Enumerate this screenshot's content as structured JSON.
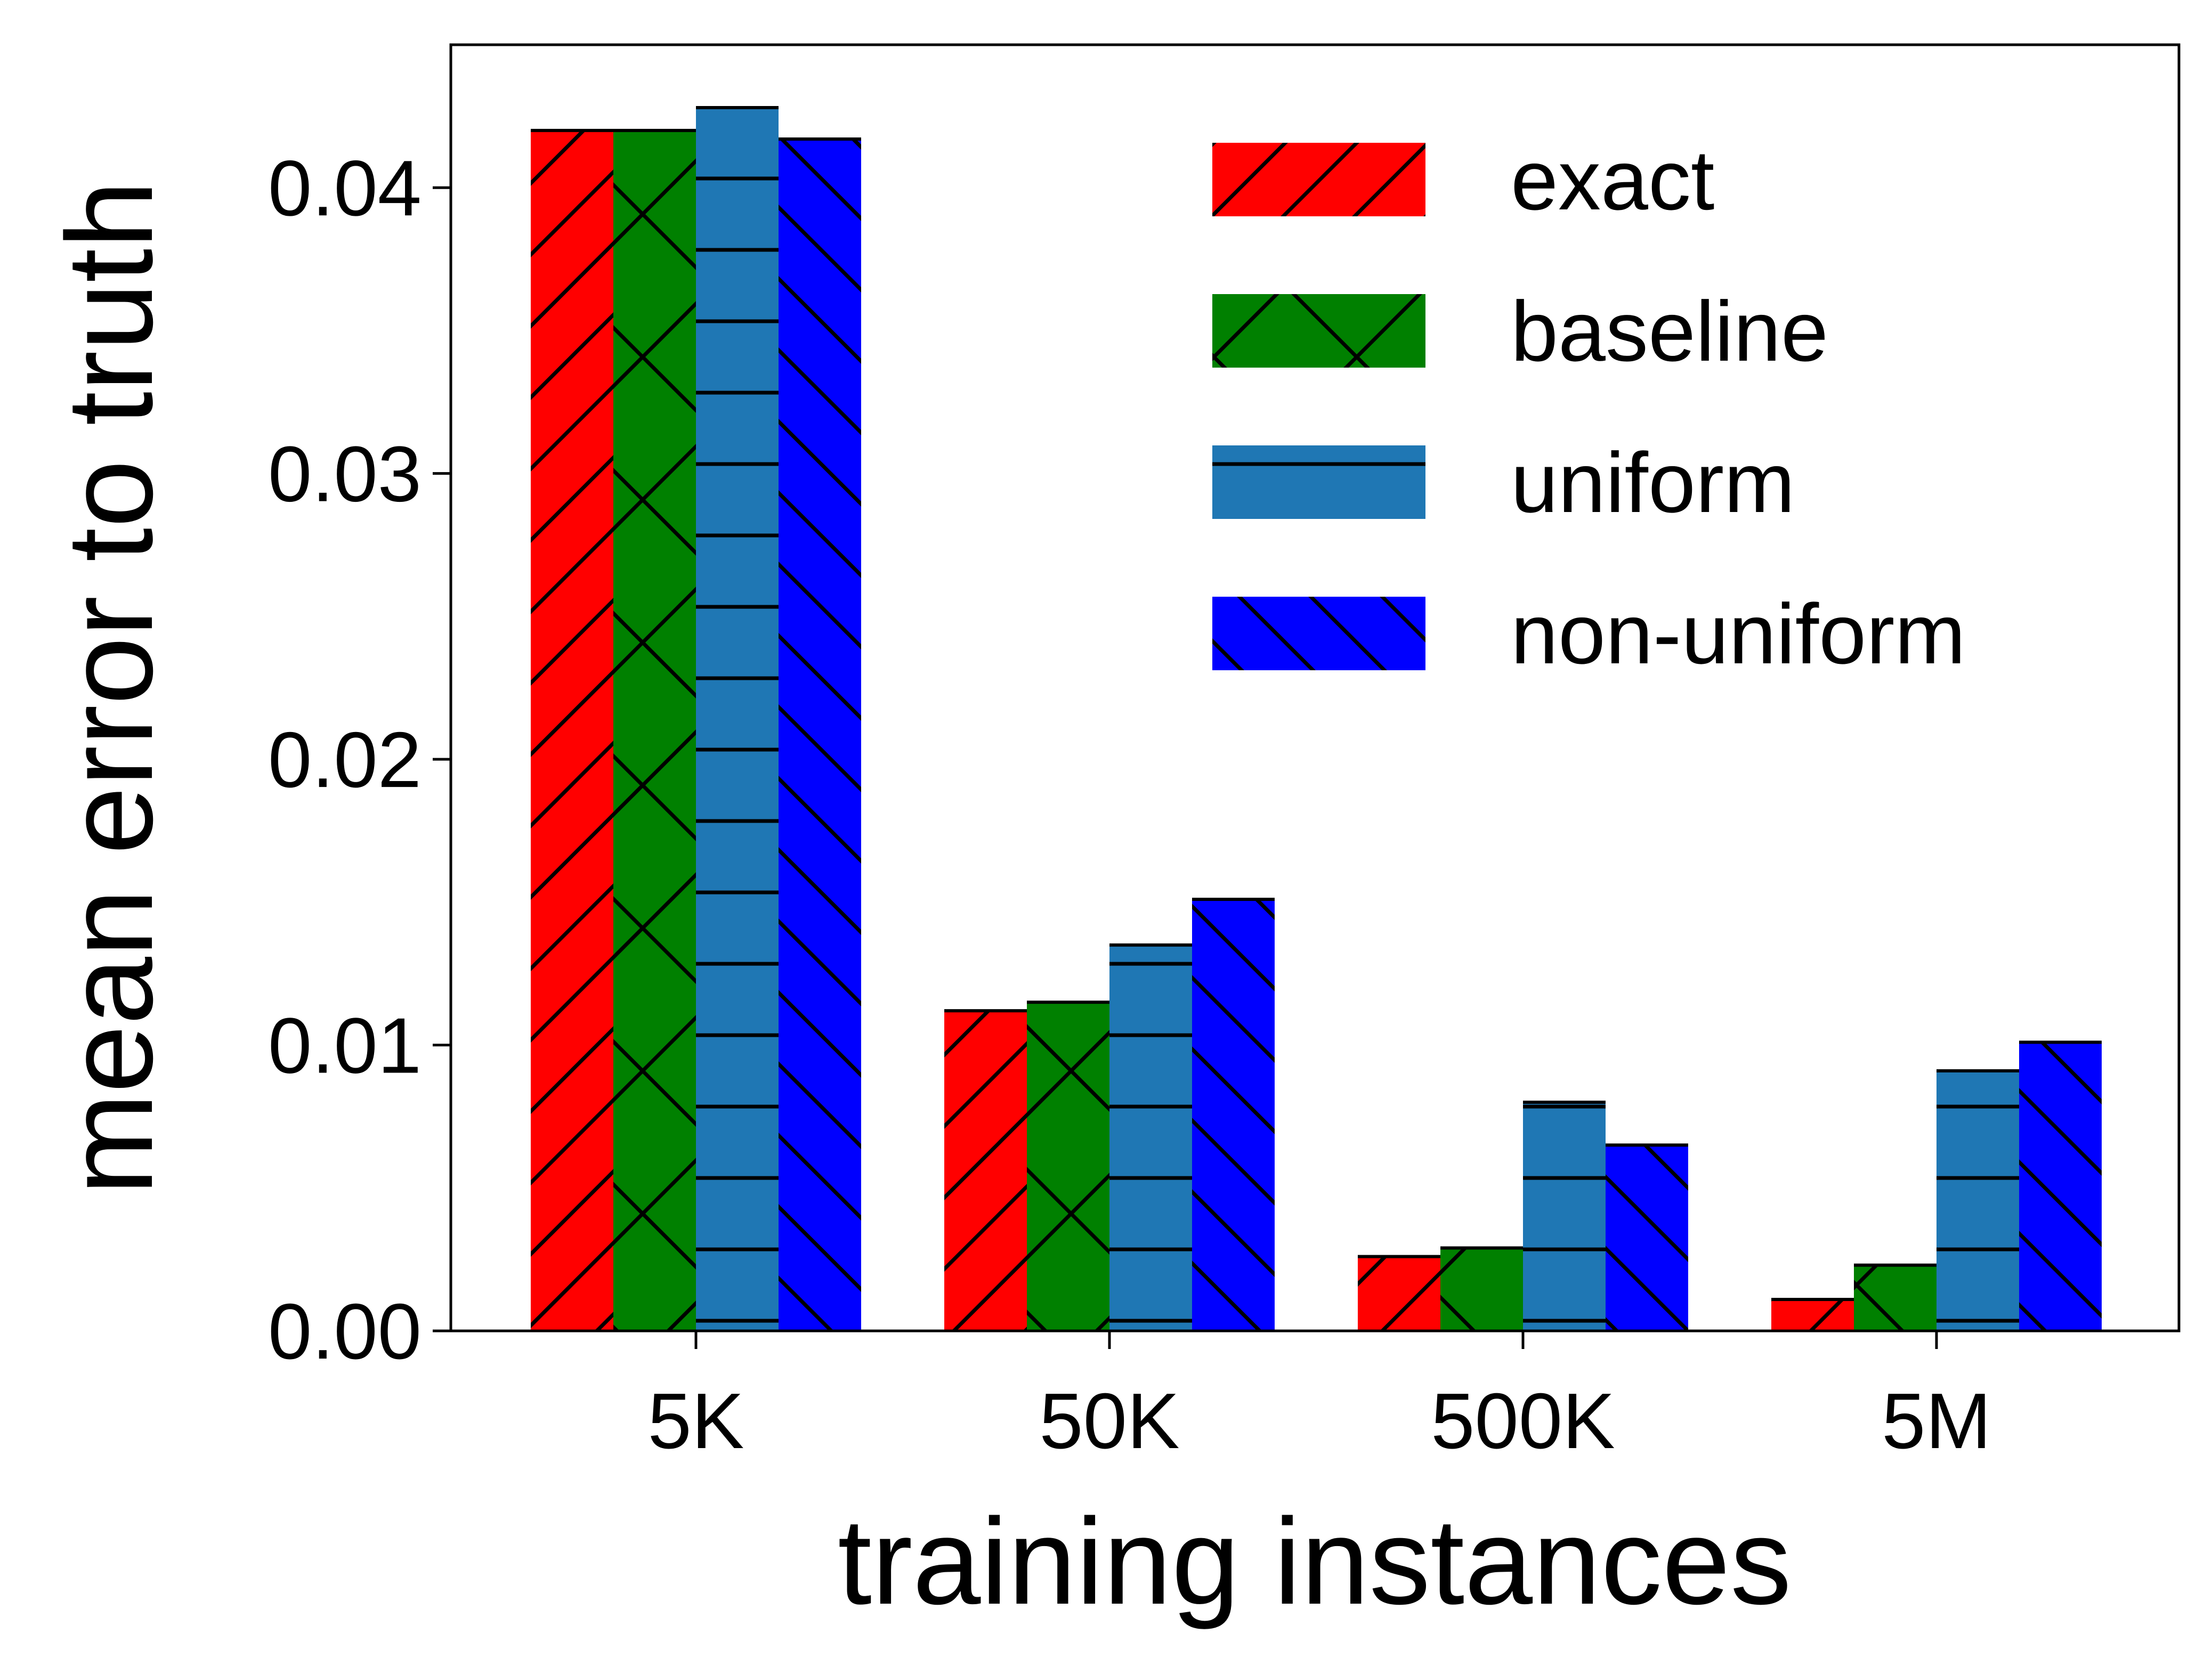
{
  "chart_data": {
    "type": "bar",
    "title": "",
    "xlabel": "training instances",
    "ylabel": "mean error to truth",
    "categories": [
      "5K",
      "50K",
      "500K",
      "5M"
    ],
    "ylim": [
      0,
      0.045
    ],
    "yticks": [
      "0.00",
      "0.01",
      "0.02",
      "0.03",
      "0.04"
    ],
    "ytick_values": [
      0,
      0.01,
      0.02,
      0.03,
      0.04
    ],
    "grid": false,
    "legend_position": "top-right",
    "series": [
      {
        "name": "exact",
        "color": "#ff0000",
        "hatch": "diagonal-forward",
        "values": [
          0.042,
          0.0112,
          0.0026,
          0.0011
        ]
      },
      {
        "name": "baseline",
        "color": "#008000",
        "hatch": "cross",
        "values": [
          0.042,
          0.0115,
          0.0029,
          0.0023
        ]
      },
      {
        "name": "uniform",
        "color": "#1f77b4",
        "hatch": "horizontal",
        "values": [
          0.0428,
          0.0135,
          0.008,
          0.0091
        ]
      },
      {
        "name": "non-uniform",
        "color": "#0000ff",
        "hatch": "diagonal-back",
        "values": [
          0.0417,
          0.0151,
          0.0065,
          0.0101
        ]
      }
    ]
  }
}
